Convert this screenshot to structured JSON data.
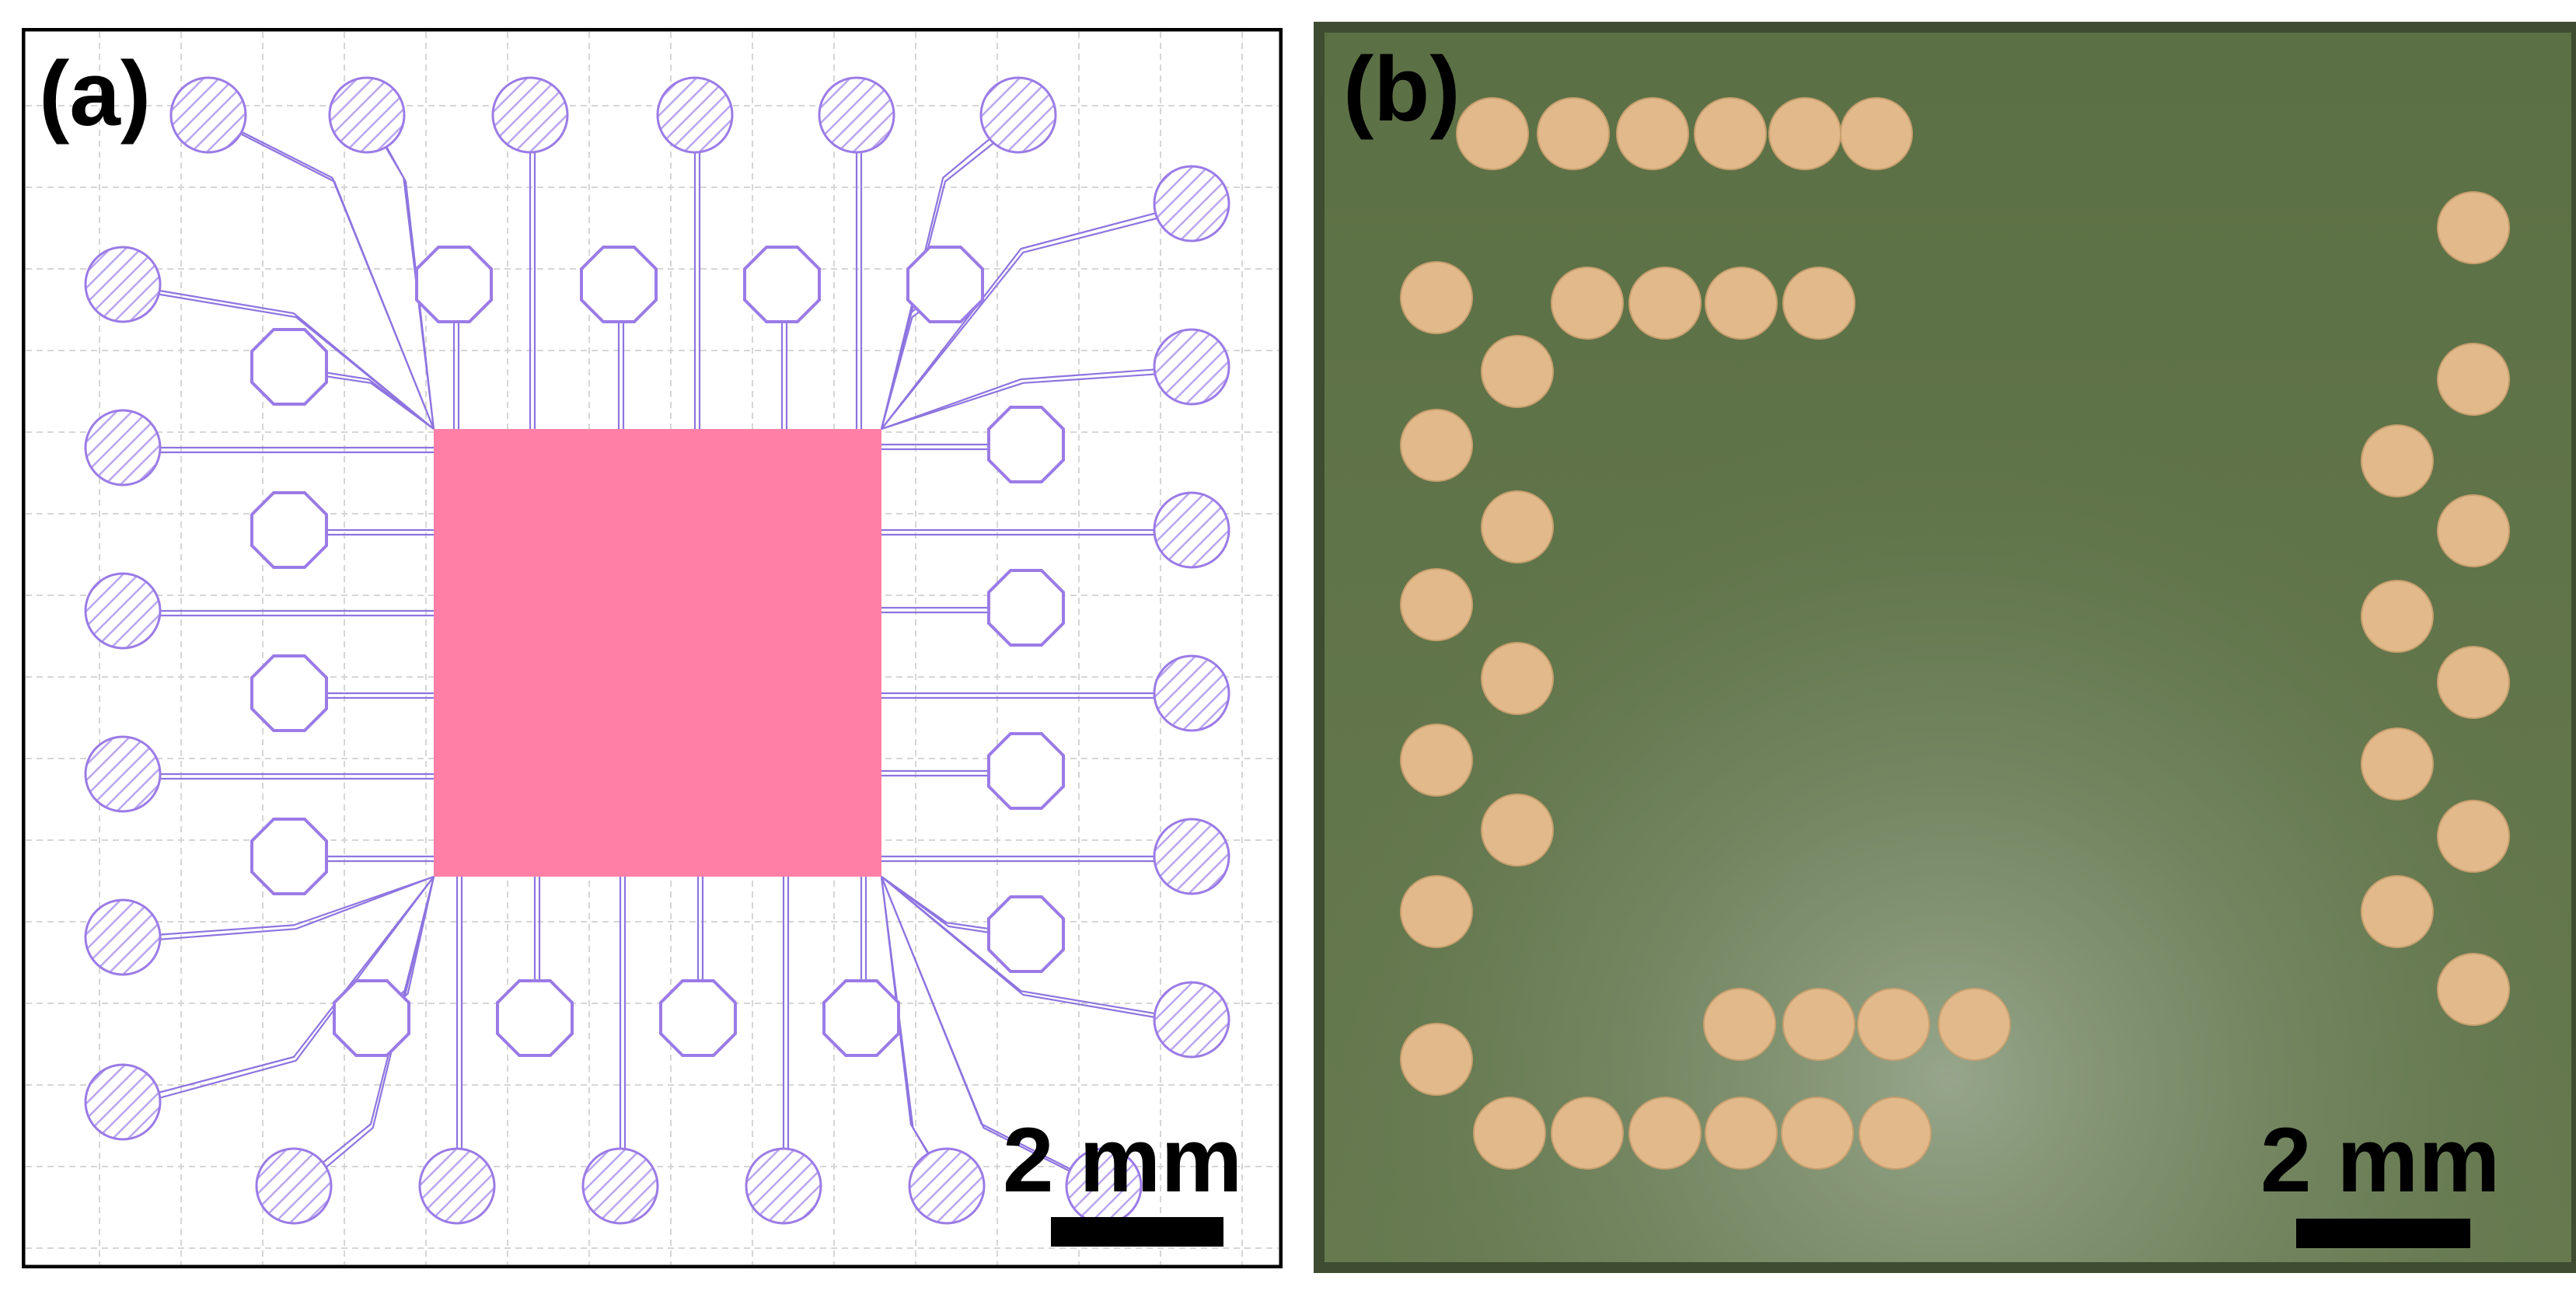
{
  "panels": [
    {
      "label": "(a)",
      "scale_text": "2 mm"
    },
    {
      "label": "(b)",
      "scale_text": "2 mm"
    }
  ],
  "colors": {
    "layout_background": "#ffffff",
    "grid_line": "#cfcfcf",
    "pad_stroke": "#9b7be6",
    "trace": "#8e74e0",
    "chip": "#ff7fa6",
    "board_green": "#5f7449",
    "board_edge": "#3e4d31",
    "copper_pad": "#e2b98b"
  }
}
